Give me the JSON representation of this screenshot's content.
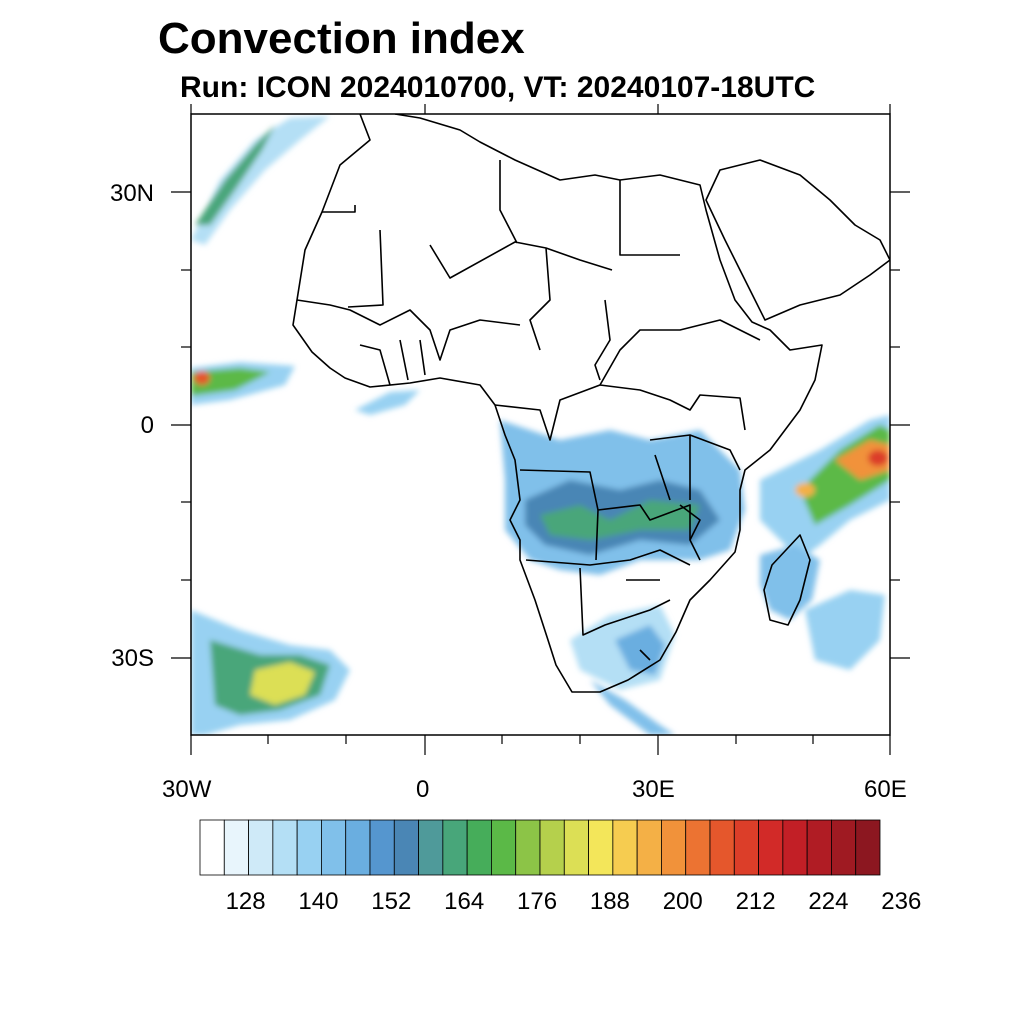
{
  "title": "Convection index",
  "subtitle": "Run: ICON 2024010700,  VT: 20240107-18UTC",
  "map": {
    "extent": {
      "lon_min": -30,
      "lon_max": 60,
      "lat_min": -40,
      "lat_max": 40
    },
    "lat_labels": [
      "30N",
      "0",
      "30S"
    ],
    "lon_labels": [
      "30W",
      "0",
      "30E",
      "60E"
    ]
  },
  "colorbar": {
    "labels": [
      "128",
      "140",
      "152",
      "164",
      "176",
      "188",
      "200",
      "212",
      "224",
      "236"
    ],
    "colors": [
      "#ffffff",
      "#e8f5fc",
      "#cfeaf8",
      "#b4dff5",
      "#98d1f2",
      "#80c0ea",
      "#6aaee0",
      "#5596cf",
      "#4a86b5",
      "#4f9a9a",
      "#48a67a",
      "#46ad5a",
      "#5bb947",
      "#8cc447",
      "#b5d04c",
      "#dcdf55",
      "#f3e65a",
      "#f6cc50",
      "#f4b046",
      "#f1923a",
      "#ec7332",
      "#e5572c",
      "#dc3e29",
      "#d22a28",
      "#c21f26",
      "#b01c24",
      "#9f1a22",
      "#8c1720"
    ]
  }
}
